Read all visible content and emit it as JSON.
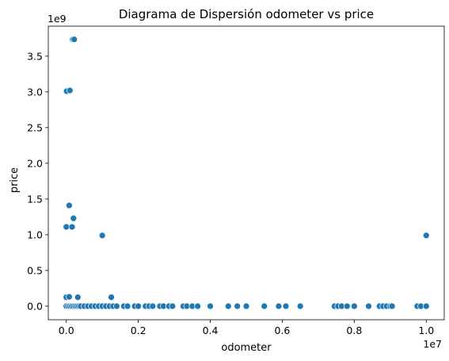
{
  "chart_data": {
    "type": "scatter",
    "title": "Diagrama de Dispersión odometer vs price",
    "xlabel": "odometer",
    "ylabel": "price",
    "x_offset_label": "1e7",
    "y_offset_label": "1e9",
    "xlim": [
      -0.05,
      1.05
    ],
    "ylim": [
      -0.19,
      3.92
    ],
    "x_ticks": [
      0.0,
      0.2,
      0.4,
      0.6,
      0.8,
      1.0
    ],
    "x_tick_labels": [
      "0.0",
      "0.2",
      "0.4",
      "0.6",
      "0.8",
      "1.0"
    ],
    "y_ticks": [
      0.0,
      0.5,
      1.0,
      1.5,
      2.0,
      2.5,
      3.0,
      3.5
    ],
    "y_tick_labels": [
      "0.0",
      "0.5",
      "1.0",
      "1.5",
      "2.0",
      "2.5",
      "3.0",
      "3.5"
    ],
    "grid": false,
    "marker_color": "#1f77b4",
    "points": [
      {
        "x": 0.018,
        "y": 3.735
      },
      {
        "x": 0.022,
        "y": 3.735
      },
      {
        "x": 0.001,
        "y": 3.01
      },
      {
        "x": 0.01,
        "y": 3.02
      },
      {
        "x": 0.008,
        "y": 1.41
      },
      {
        "x": 0.02,
        "y": 1.23
      },
      {
        "x": 0.0,
        "y": 1.11
      },
      {
        "x": 0.016,
        "y": 1.11
      },
      {
        "x": 0.1,
        "y": 0.99
      },
      {
        "x": 1.0,
        "y": 0.99
      },
      {
        "x": 0.0,
        "y": 0.125
      },
      {
        "x": 0.008,
        "y": 0.13
      },
      {
        "x": 0.032,
        "y": 0.125
      },
      {
        "x": 0.125,
        "y": 0.125
      },
      {
        "x": 0.0,
        "y": 0.0
      },
      {
        "x": 0.005,
        "y": 0.0
      },
      {
        "x": 0.01,
        "y": 0.0
      },
      {
        "x": 0.015,
        "y": 0.0
      },
      {
        "x": 0.02,
        "y": 0.0
      },
      {
        "x": 0.025,
        "y": 0.0
      },
      {
        "x": 0.03,
        "y": 0.0
      },
      {
        "x": 0.035,
        "y": 0.0
      },
      {
        "x": 0.04,
        "y": 0.0
      },
      {
        "x": 0.05,
        "y": 0.0
      },
      {
        "x": 0.06,
        "y": 0.0
      },
      {
        "x": 0.07,
        "y": 0.0
      },
      {
        "x": 0.08,
        "y": 0.0
      },
      {
        "x": 0.09,
        "y": 0.0
      },
      {
        "x": 0.1,
        "y": 0.0
      },
      {
        "x": 0.11,
        "y": 0.0
      },
      {
        "x": 0.12,
        "y": 0.0
      },
      {
        "x": 0.13,
        "y": 0.0
      },
      {
        "x": 0.14,
        "y": 0.0
      },
      {
        "x": 0.16,
        "y": 0.0
      },
      {
        "x": 0.17,
        "y": 0.0
      },
      {
        "x": 0.19,
        "y": 0.0
      },
      {
        "x": 0.2,
        "y": 0.0
      },
      {
        "x": 0.22,
        "y": 0.0
      },
      {
        "x": 0.23,
        "y": 0.0
      },
      {
        "x": 0.24,
        "y": 0.0
      },
      {
        "x": 0.26,
        "y": 0.0
      },
      {
        "x": 0.27,
        "y": 0.0
      },
      {
        "x": 0.285,
        "y": 0.0
      },
      {
        "x": 0.295,
        "y": 0.0
      },
      {
        "x": 0.325,
        "y": 0.0
      },
      {
        "x": 0.335,
        "y": 0.0
      },
      {
        "x": 0.35,
        "y": 0.0
      },
      {
        "x": 0.365,
        "y": 0.0
      },
      {
        "x": 0.4,
        "y": 0.0
      },
      {
        "x": 0.45,
        "y": 0.0
      },
      {
        "x": 0.475,
        "y": 0.0
      },
      {
        "x": 0.5,
        "y": 0.0
      },
      {
        "x": 0.55,
        "y": 0.0
      },
      {
        "x": 0.59,
        "y": 0.0
      },
      {
        "x": 0.61,
        "y": 0.0
      },
      {
        "x": 0.65,
        "y": 0.0
      },
      {
        "x": 0.745,
        "y": 0.0
      },
      {
        "x": 0.755,
        "y": 0.0
      },
      {
        "x": 0.765,
        "y": 0.0
      },
      {
        "x": 0.78,
        "y": 0.0
      },
      {
        "x": 0.8,
        "y": 0.0
      },
      {
        "x": 0.84,
        "y": 0.0
      },
      {
        "x": 0.87,
        "y": 0.0
      },
      {
        "x": 0.88,
        "y": 0.0
      },
      {
        "x": 0.89,
        "y": 0.0
      },
      {
        "x": 0.9,
        "y": 0.0
      },
      {
        "x": 0.905,
        "y": 0.0
      },
      {
        "x": 0.975,
        "y": 0.0
      },
      {
        "x": 0.985,
        "y": 0.0
      },
      {
        "x": 1.0,
        "y": 0.0
      }
    ]
  }
}
